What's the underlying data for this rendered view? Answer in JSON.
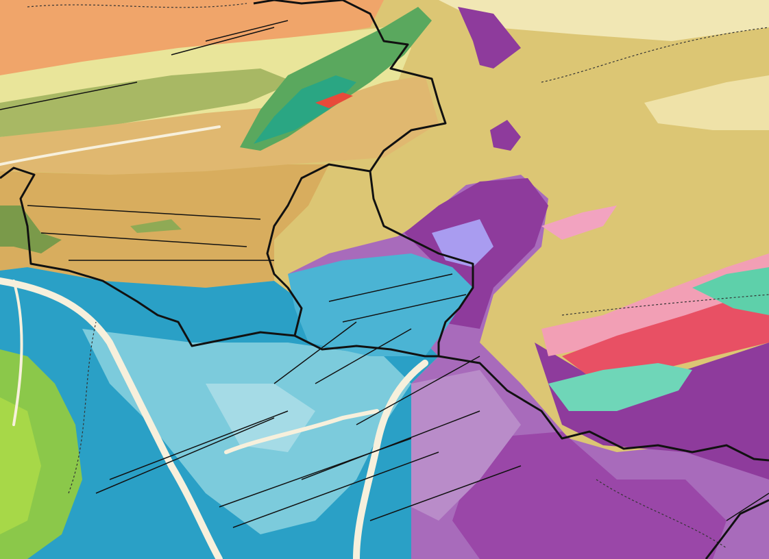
{
  "map": {
    "colors": {
      "orange": "#f0a56a",
      "pale_yellow": "#e9e59a",
      "olive_green": "#8faa55",
      "tan": "#d8ad5e",
      "light_tan": "#eed9a4",
      "khaki": "#dcc674",
      "pale_khaki": "#f1e7b4",
      "dark_purple": "#8e3b9c",
      "mid_purple": "#a86bbb",
      "light_purple": "#b98cc9",
      "lavender": "#a99cf0",
      "blue": "#2aa0c6",
      "light_blue": "#7ccbdc",
      "pale_blue": "#a5dbe6",
      "green": "#8bc84a",
      "bright_green": "#a7d848",
      "teal": "#2aa683",
      "red": "#e85064",
      "pink": "#f29fb5",
      "mint": "#6fd6b8",
      "river": "#f7f0dc",
      "border": "#111111"
    }
  }
}
